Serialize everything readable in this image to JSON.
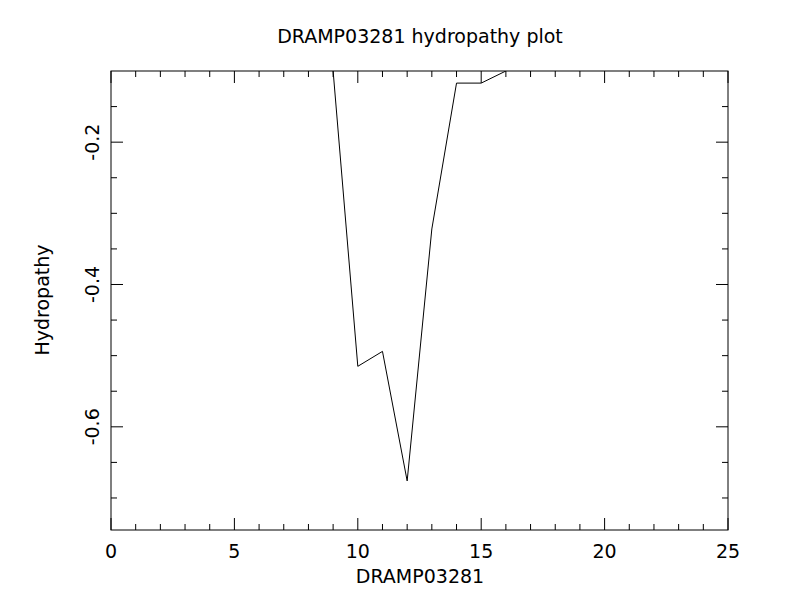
{
  "chart_data": {
    "type": "line",
    "title": "DRAMP03281 hydropathy plot",
    "x_label": "DRAMP03281",
    "y_label": "Hydropathy",
    "x": [
      9,
      10,
      11,
      12,
      13,
      14,
      15,
      16
    ],
    "series": [
      {
        "name": "Hydropathy",
        "color": "#000000",
        "values": [
          -0.1,
          -0.515,
          -0.494,
          -0.676,
          -0.322,
          -0.117,
          -0.117,
          -0.1
        ]
      }
    ],
    "xlim": [
      0,
      25
    ],
    "xticks": [
      0,
      5,
      10,
      15,
      20,
      25
    ],
    "x_minor_ticks": [
      1,
      2,
      3,
      4,
      6,
      7,
      8,
      9,
      11,
      12,
      13,
      14,
      16,
      17,
      18,
      19,
      21,
      22,
      23,
      24
    ],
    "ylim": [
      -0.745,
      -0.1
    ],
    "yticks": [
      -0.2,
      -0.4,
      -0.6
    ],
    "y_minor_ticks": [
      -0.15,
      -0.25,
      -0.3,
      -0.35,
      -0.45,
      -0.5,
      -0.55,
      -0.65,
      -0.7
    ],
    "grid": false
  }
}
